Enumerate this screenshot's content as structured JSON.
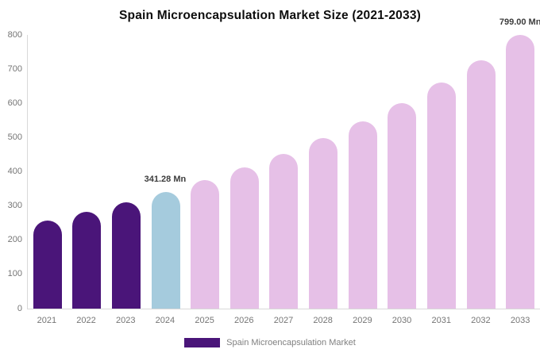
{
  "title": "Spain Microencapsulation Market Size (2021-2033)",
  "legend": {
    "label": "Spain Microencapsulation Market",
    "swatch_color": "#4a1579"
  },
  "colors": {
    "historical_bar": "#4a1579",
    "base_year_bar": "#a5cbdd",
    "forecast_bar": "#e6c0e7",
    "axis_line": "#d9d9d9",
    "tick_text": "#757575",
    "annotation_text": "#3c3c3c",
    "title_text": "#0d0d0d",
    "background": "#ffffff"
  },
  "chart_data": {
    "type": "bar",
    "title": "Spain Microencapsulation Market Size (2021-2033)",
    "xlabel": "",
    "ylabel": "",
    "unit": "Mn",
    "ylim": [
      0,
      800
    ],
    "ytick_step": 100,
    "ytick_labels": [
      "0",
      "100",
      "200",
      "300",
      "400",
      "500",
      "600",
      "700",
      "800"
    ],
    "grid": false,
    "legend_position": "bottom",
    "categories": [
      "2021",
      "2022",
      "2023",
      "2024",
      "2025",
      "2026",
      "2027",
      "2028",
      "2029",
      "2030",
      "2031",
      "2032",
      "2033"
    ],
    "values": [
      257,
      282,
      310,
      341.28,
      375,
      412,
      453,
      498,
      547,
      601,
      661,
      726,
      799
    ],
    "bar_colors": [
      "#4a1579",
      "#4a1579",
      "#4a1579",
      "#a5cbdd",
      "#e6c0e7",
      "#e6c0e7",
      "#e6c0e7",
      "#e6c0e7",
      "#e6c0e7",
      "#e6c0e7",
      "#e6c0e7",
      "#e6c0e7",
      "#e6c0e7"
    ],
    "annotations": [
      {
        "category": "2024",
        "text": "341.28 Mn"
      },
      {
        "category": "2033",
        "text": "799.00 Mn"
      }
    ]
  }
}
